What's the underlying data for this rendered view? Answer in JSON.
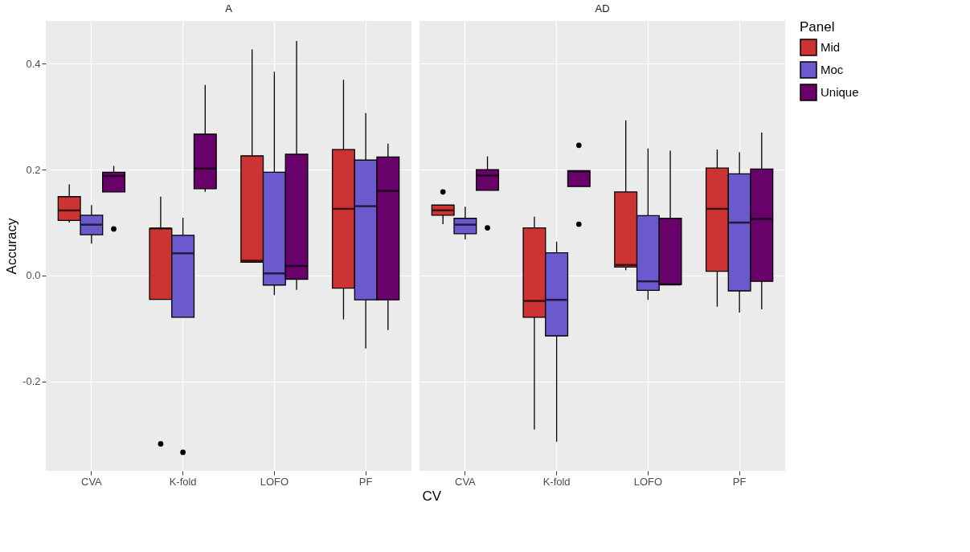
{
  "chart_data": [
    {
      "type": "box",
      "title": "A",
      "ylabel": "Accuracy",
      "xlabel": "CV",
      "categories": [
        "CVA",
        "K-fold",
        "LOFO",
        "PF"
      ],
      "ylim": [
        -0.369,
        0.481
      ],
      "yticks": [
        -0.2,
        {
          "value": 0,
          "label": "0.0"
        },
        0.2,
        0.4
      ],
      "grid": true,
      "legend": "right",
      "legend_title": "Panel",
      "series": [
        {
          "name": "Mid",
          "color": "#cd3333",
          "boxes": [
            {
              "low": 0.1,
              "q1": 0.104,
              "median": 0.123,
              "q3": 0.149,
              "high": 0.172
            },
            {
              "low": -0.045,
              "q1": -0.045,
              "median": 0.089,
              "q3": 0.089,
              "high": 0.149,
              "outliers": [
                -0.318
              ]
            },
            {
              "low": 0.025,
              "q1": 0.025,
              "median": 0.028,
              "q3": 0.226,
              "high": 0.427
            },
            {
              "low": -0.083,
              "q1": -0.024,
              "median": 0.126,
              "q3": 0.238,
              "high": 0.37
            }
          ]
        },
        {
          "name": "Moc",
          "color": "#6a5acd",
          "boxes": [
            {
              "low": 0.06,
              "q1": 0.077,
              "median": 0.096,
              "q3": 0.114,
              "high": 0.133
            },
            {
              "low": -0.079,
              "q1": -0.079,
              "median": 0.042,
              "q3": 0.076,
              "high": 0.109,
              "outliers": [
                -0.334
              ]
            },
            {
              "low": -0.037,
              "q1": -0.018,
              "median": 0.004,
              "q3": 0.195,
              "high": 0.385
            },
            {
              "low": -0.138,
              "q1": -0.046,
              "median": 0.131,
              "q3": 0.218,
              "high": 0.307
            }
          ]
        },
        {
          "name": "Unique",
          "color": "#68016a",
          "boxes": [
            {
              "low": 0.158,
              "q1": 0.158,
              "median": 0.188,
              "q3": 0.195,
              "high": 0.207,
              "outliers": [
                0.088
              ]
            },
            {
              "low": 0.158,
              "q1": 0.164,
              "median": 0.202,
              "q3": 0.267,
              "high": 0.36
            },
            {
              "low": -0.027,
              "q1": -0.007,
              "median": 0.018,
              "q3": 0.229,
              "high": 0.443
            },
            {
              "low": -0.103,
              "q1": -0.046,
              "median": 0.16,
              "q3": 0.224,
              "high": 0.249
            }
          ]
        }
      ]
    },
    {
      "type": "box",
      "title": "AD",
      "categories": [
        "CVA",
        "K-fold",
        "LOFO",
        "PF"
      ],
      "ylim": [
        -0.369,
        0.481
      ],
      "yticks": [
        -0.2,
        0,
        0.2,
        0.4
      ],
      "grid": true,
      "tick_labels": "x",
      "series": [
        {
          "name": "Mid",
          "color": "#cd3333",
          "boxes": [
            {
              "low": 0.097,
              "q1": 0.114,
              "median": 0.123,
              "q3": 0.133,
              "high": 0.133,
              "outliers": [
                0.158
              ]
            },
            {
              "low": -0.291,
              "q1": -0.079,
              "median": -0.048,
              "q3": 0.09,
              "high": 0.111
            },
            {
              "low": 0.01,
              "q1": 0.016,
              "median": 0.02,
              "q3": 0.158,
              "high": 0.293
            },
            {
              "low": -0.059,
              "q1": 0.008,
              "median": 0.126,
              "q3": 0.203,
              "high": 0.238
            }
          ]
        },
        {
          "name": "Moc",
          "color": "#6a5acd",
          "boxes": [
            {
              "low": 0.068,
              "q1": 0.079,
              "median": 0.096,
              "q3": 0.108,
              "high": 0.13
            },
            {
              "low": -0.314,
              "q1": -0.114,
              "median": -0.046,
              "q3": 0.043,
              "high": 0.064
            },
            {
              "low": -0.046,
              "q1": -0.028,
              "median": -0.011,
              "q3": 0.113,
              "high": 0.24
            },
            {
              "low": -0.07,
              "q1": -0.029,
              "median": 0.1,
              "q3": 0.192,
              "high": 0.233
            }
          ]
        },
        {
          "name": "Unique",
          "color": "#68016a",
          "boxes": [
            {
              "low": 0.161,
              "q1": 0.161,
              "median": 0.189,
              "q3": 0.2,
              "high": 0.225,
              "outliers": [
                0.09
              ]
            },
            {
              "low": 0.168,
              "q1": 0.168,
              "median": 0.197,
              "q3": 0.198,
              "high": 0.198,
              "outliers": [
                0.246,
                0.097
              ]
            },
            {
              "low": -0.017,
              "q1": -0.017,
              "median": -0.017,
              "q3": 0.108,
              "high": 0.236
            },
            {
              "low": -0.064,
              "q1": -0.011,
              "median": 0.107,
              "q3": 0.201,
              "high": 0.27
            }
          ]
        }
      ]
    }
  ]
}
